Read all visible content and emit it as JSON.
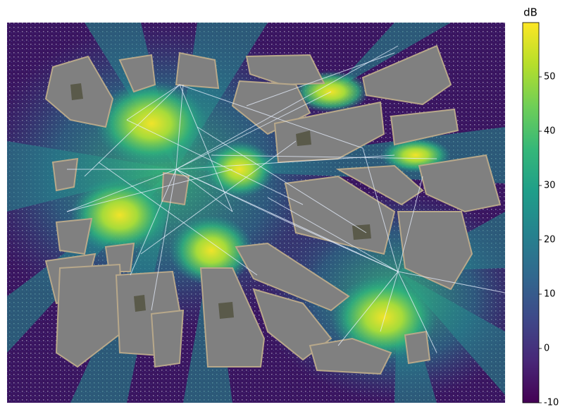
{
  "colorbar": {
    "label": "dB",
    "lim": [
      -10,
      60
    ],
    "ticks": [
      -10,
      0,
      10,
      20,
      30,
      40,
      50
    ],
    "colormap": "viridis"
  }
}
